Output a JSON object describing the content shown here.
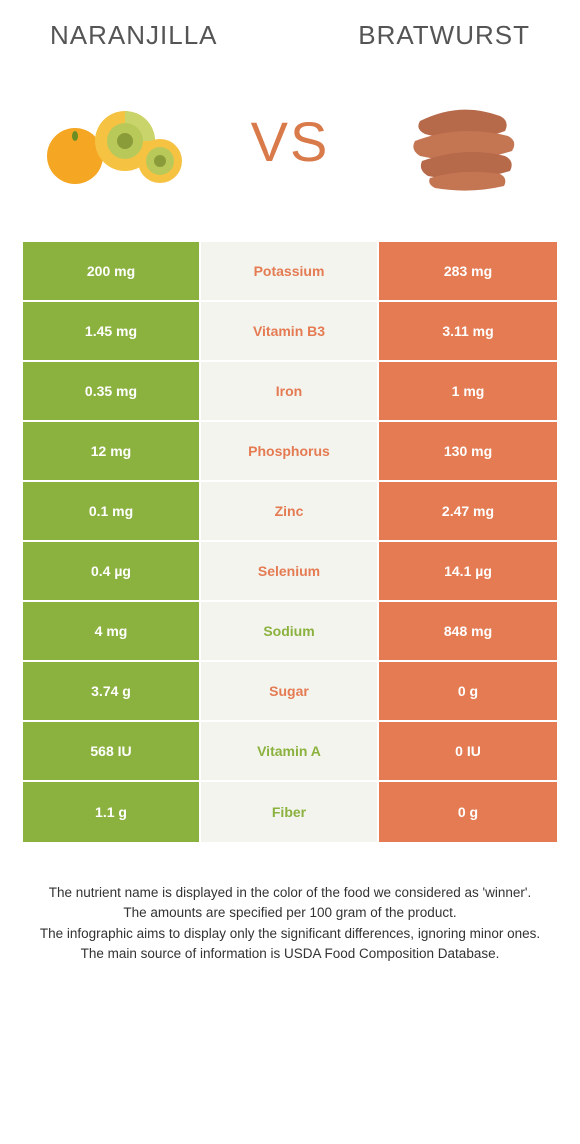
{
  "header": {
    "left_title": "NARANJILLA",
    "right_title": "BRATWURST"
  },
  "hero": {
    "vs_label": "VS"
  },
  "colors": {
    "green": "#8bb23f",
    "orange": "#e47b52",
    "mid_bg": "#f4f4ee"
  },
  "rows": [
    {
      "left": "200 mg",
      "label": "Potassium",
      "right": "283 mg",
      "winner": "right"
    },
    {
      "left": "1.45 mg",
      "label": "Vitamin B3",
      "right": "3.11 mg",
      "winner": "right"
    },
    {
      "left": "0.35 mg",
      "label": "Iron",
      "right": "1 mg",
      "winner": "right"
    },
    {
      "left": "12 mg",
      "label": "Phosphorus",
      "right": "130 mg",
      "winner": "right"
    },
    {
      "left": "0.1 mg",
      "label": "Zinc",
      "right": "2.47 mg",
      "winner": "right"
    },
    {
      "left": "0.4 µg",
      "label": "Selenium",
      "right": "14.1 µg",
      "winner": "right"
    },
    {
      "left": "4 mg",
      "label": "Sodium",
      "right": "848 mg",
      "winner": "left"
    },
    {
      "left": "3.74 g",
      "label": "Sugar",
      "right": "0 g",
      "winner": "right"
    },
    {
      "left": "568 IU",
      "label": "Vitamin A",
      "right": "0 IU",
      "winner": "left"
    },
    {
      "left": "1.1 g",
      "label": "Fiber",
      "right": "0 g",
      "winner": "left"
    }
  ],
  "footnote": {
    "line1": "The nutrient name is displayed in the color of the food we considered as 'winner'.",
    "line2": "The amounts are specified per 100 gram of the product.",
    "line3": "The infographic aims to display only the significant differences, ignoring minor ones.",
    "line4": "The main source of information is USDA Food Composition Database."
  }
}
